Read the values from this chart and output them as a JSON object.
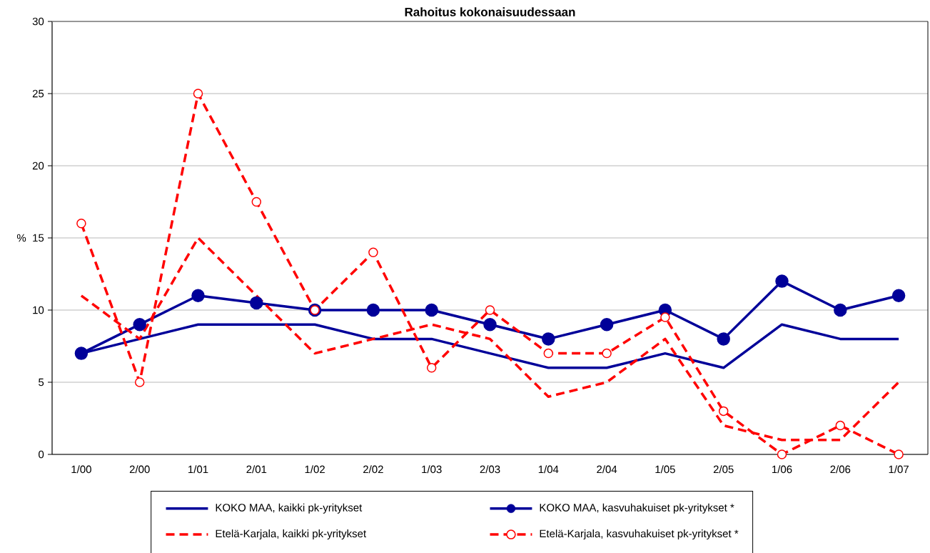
{
  "chart_data": {
    "type": "line",
    "title": "Rahoitus kokonaisuudessaan",
    "ylabel": "%",
    "categories": [
      "1/00",
      "2/00",
      "1/01",
      "2/01",
      "1/02",
      "2/02",
      "1/03",
      "2/03",
      "1/04",
      "2/04",
      "1/05",
      "2/05",
      "1/06",
      "2/06",
      "1/07"
    ],
    "series": [
      {
        "name": "KOKO MAA, kaikki pk-yritykset",
        "color": "#000099",
        "marker": "none",
        "line_style": "solid",
        "values": [
          7,
          8,
          9,
          9,
          9,
          8,
          8,
          7,
          6,
          6,
          7,
          6,
          9,
          8,
          8
        ]
      },
      {
        "name": "KOKO MAA, kasvuhakuiset pk-yritykset *",
        "color": "#000099",
        "marker": "circle",
        "line_style": "solid",
        "values": [
          7,
          9,
          11,
          10.5,
          10,
          10,
          10,
          9,
          8,
          9,
          10,
          8,
          12,
          10,
          11
        ]
      },
      {
        "name": "Etelä-Karjala, kaikki pk-yritykset",
        "color": "#ff0000",
        "marker": "none",
        "line_style": "dashed",
        "values": [
          11,
          8,
          15,
          11,
          7,
          8,
          9,
          8,
          4,
          5,
          8,
          2,
          1,
          1,
          5
        ]
      },
      {
        "name": "Etelä-Karjala, kasvuhakuiset pk-yritykset *",
        "color": "#ff0000",
        "marker": "circle",
        "line_style": "dashed",
        "values": [
          16,
          5,
          25,
          17.5,
          10,
          14,
          6,
          10,
          7,
          7,
          9.5,
          3,
          0,
          2,
          0
        ]
      }
    ],
    "ylim": [
      0,
      30
    ],
    "yticks": [
      0,
      5,
      10,
      15,
      20,
      25,
      30
    ],
    "grid": "y",
    "legend": "bottom"
  }
}
